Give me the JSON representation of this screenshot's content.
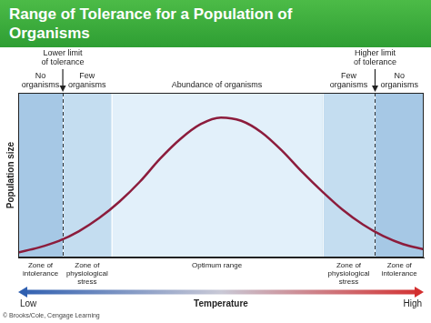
{
  "chart_data": {
    "type": "line",
    "title": "Range of Tolerance for a Population of Organisms",
    "x": [
      0,
      5,
      10,
      15,
      20,
      25,
      30,
      35,
      40,
      45,
      50,
      55,
      60,
      65,
      70,
      75,
      80,
      85,
      90,
      95,
      100
    ],
    "values": [
      3,
      6,
      10,
      16,
      24,
      34,
      46,
      60,
      72,
      81,
      85,
      83,
      76,
      65,
      52,
      40,
      29,
      20,
      13,
      8,
      5
    ],
    "color": "#8c1c3c",
    "xlim": [
      0,
      100
    ],
    "ylim": [
      0,
      100
    ],
    "tick_labels": false,
    "grid": false,
    "y_label": "Population size",
    "x_label": "Temperature",
    "x_low_label": "Low",
    "x_high_label": "High",
    "limits": [
      {
        "label": "Lower limit of tolerance",
        "x": 11
      },
      {
        "label": "Higher limit of tolerance",
        "x": 88
      }
    ],
    "zones": [
      {
        "from": 0,
        "to": 11,
        "label": "Zone of intolerance",
        "organisms": "No organisms"
      },
      {
        "from": 11,
        "to": 23,
        "label": "Zone of physiological stress",
        "organisms": "Few organisms"
      },
      {
        "from": 23,
        "to": 75,
        "label": "Optimum range",
        "organisms": "Abundance of organisms"
      },
      {
        "from": 75,
        "to": 88,
        "label": "Zone of physiological stress",
        "organisms": "Few organisms"
      },
      {
        "from": 88,
        "to": 100,
        "label": "Zone of intolerance",
        "organisms": "No organisms"
      }
    ],
    "credit": "© Brooks/Cole, Cengage Learning"
  }
}
